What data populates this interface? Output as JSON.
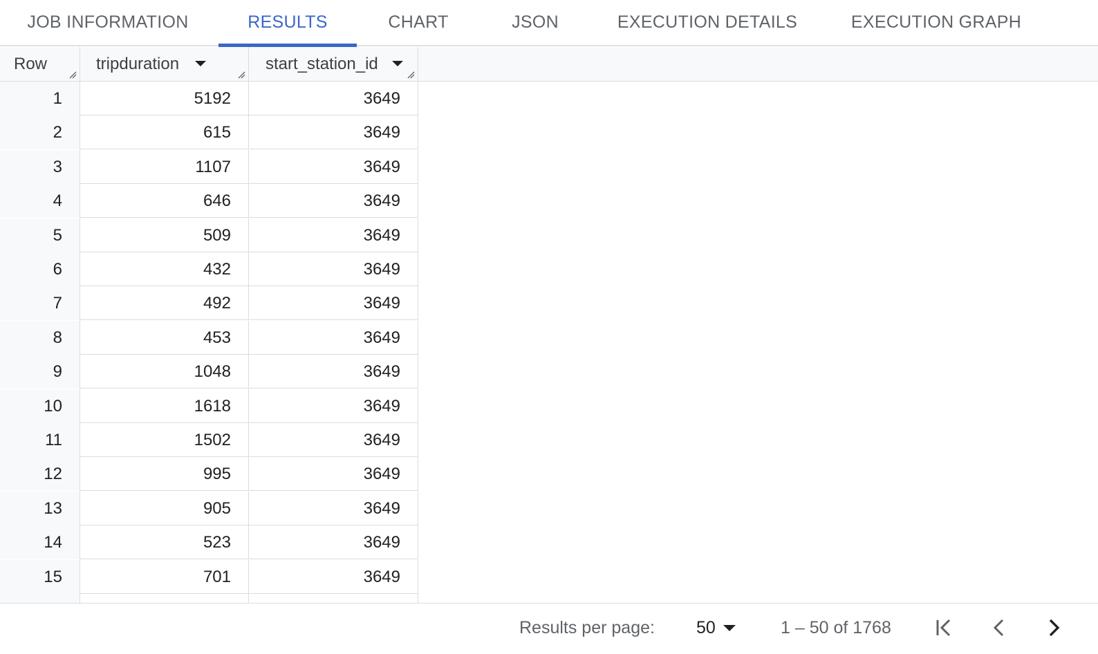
{
  "tabs": [
    {
      "label": "JOB INFORMATION",
      "active": false
    },
    {
      "label": "RESULTS",
      "active": true
    },
    {
      "label": "CHART",
      "active": false
    },
    {
      "label": "JSON",
      "active": false
    },
    {
      "label": "EXECUTION DETAILS",
      "active": false
    },
    {
      "label": "EXECUTION GRAPH",
      "active": false
    }
  ],
  "colors": {
    "accent": "#3b66c8",
    "tab_inactive": "#5f6368",
    "header_bg": "#f8f9fa",
    "border": "#dadce0"
  },
  "table": {
    "columns": [
      {
        "label": "Row",
        "sortable": false
      },
      {
        "label": "tripduration",
        "sortable": true
      },
      {
        "label": "start_station_id",
        "sortable": true
      }
    ],
    "rows": [
      [
        "1",
        "5192",
        "3649"
      ],
      [
        "2",
        "615",
        "3649"
      ],
      [
        "3",
        "1107",
        "3649"
      ],
      [
        "4",
        "646",
        "3649"
      ],
      [
        "5",
        "509",
        "3649"
      ],
      [
        "6",
        "432",
        "3649"
      ],
      [
        "7",
        "492",
        "3649"
      ],
      [
        "8",
        "453",
        "3649"
      ],
      [
        "9",
        "1048",
        "3649"
      ],
      [
        "10",
        "1618",
        "3649"
      ],
      [
        "11",
        "1502",
        "3649"
      ],
      [
        "12",
        "995",
        "3649"
      ],
      [
        "13",
        "905",
        "3649"
      ],
      [
        "14",
        "523",
        "3649"
      ],
      [
        "15",
        "701",
        "3649"
      ],
      [
        "",
        "",
        ""
      ]
    ]
  },
  "footer": {
    "results_per_page_label": "Results per page:",
    "per_page_value": "50",
    "range_text": "1 – 50 of 1768",
    "icons": [
      "first-page-icon",
      "chevron-left-icon",
      "chevron-right-icon"
    ]
  }
}
